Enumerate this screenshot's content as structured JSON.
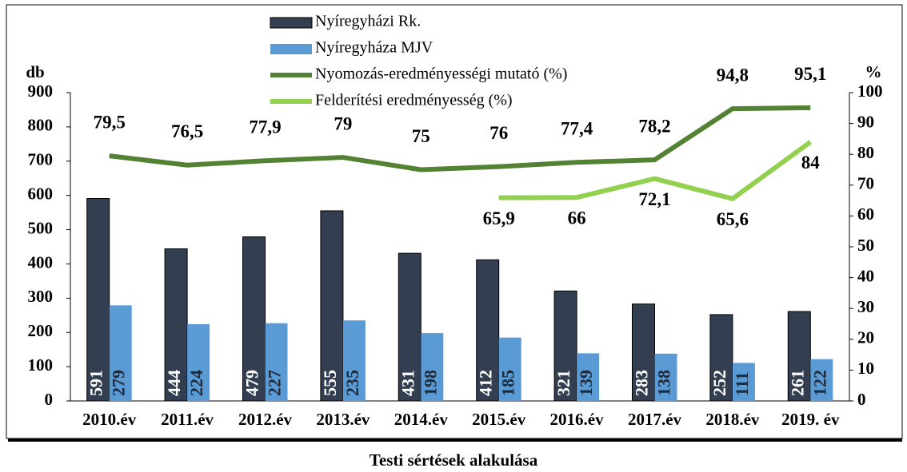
{
  "chart_data": {
    "type": "bar_line",
    "title": "Testi sértések alakulása",
    "ylabel": "db",
    "y2label": "%",
    "categories": [
      "2010.év",
      "2011.év",
      "2012.év",
      "2013.év",
      "2014.év",
      "2015.év",
      "2016.év",
      "2017.év",
      "2018.év",
      "2019. év"
    ],
    "series": [
      {
        "name": "Nyíregyházi Rk.",
        "type": "bar",
        "color": "#333f50",
        "values": [
          591,
          444,
          479,
          555,
          431,
          412,
          321,
          283,
          252,
          261
        ]
      },
      {
        "name": "Nyíregyháza MJV",
        "type": "bar",
        "color": "#5b9bd5",
        "values": [
          279,
          224,
          227,
          235,
          198,
          185,
          139,
          138,
          111,
          122
        ]
      },
      {
        "name": "Nyomozás-eredményességi mutató (%)",
        "type": "line",
        "axis": "y2",
        "color": "#548235",
        "values": [
          79.5,
          76.5,
          77.9,
          79,
          75,
          76,
          77.4,
          78.2,
          94.8,
          95.1
        ],
        "value_labels": [
          "79,5",
          "76,5",
          "77,9",
          "79",
          "75",
          "76",
          "77,4",
          "78,2",
          "94,8",
          "95,1"
        ]
      },
      {
        "name": "Felderítési eredményesség (%)",
        "type": "line",
        "axis": "y2",
        "color": "#92d050",
        "values": [
          null,
          null,
          null,
          null,
          null,
          65.9,
          66,
          72.1,
          65.6,
          84
        ],
        "value_labels": [
          null,
          null,
          null,
          null,
          null,
          "65,9",
          "66",
          "72,1",
          "65,6",
          "84"
        ]
      }
    ],
    "ylim": [
      0,
      900
    ],
    "yticks": [
      0,
      100,
      200,
      300,
      400,
      500,
      600,
      700,
      800,
      900
    ],
    "y2lim": [
      0,
      100
    ],
    "y2ticks": [
      0,
      10,
      20,
      30,
      40,
      50,
      60,
      70,
      80,
      90,
      100
    ]
  }
}
